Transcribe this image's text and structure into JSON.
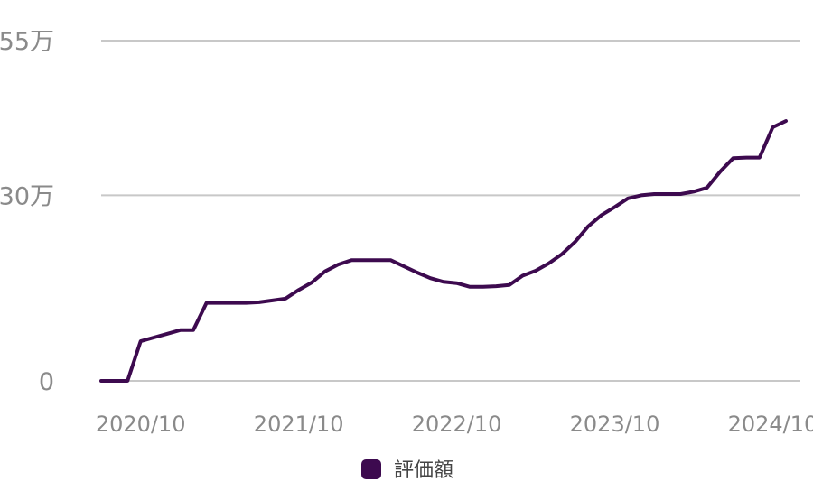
{
  "chart_data": {
    "type": "line",
    "x": [
      "2020/07",
      "2020/08",
      "2020/09",
      "2020/10",
      "2020/11",
      "2020/12",
      "2021/01",
      "2021/02",
      "2021/03",
      "2021/04",
      "2021/05",
      "2021/06",
      "2021/07",
      "2021/08",
      "2021/09",
      "2021/10",
      "2021/11",
      "2021/12",
      "2022/01",
      "2022/02",
      "2022/03",
      "2022/04",
      "2022/05",
      "2022/06",
      "2022/07",
      "2022/08",
      "2022/09",
      "2022/10",
      "2022/11",
      "2022/12",
      "2023/01",
      "2023/02",
      "2023/03",
      "2023/04",
      "2023/05",
      "2023/06",
      "2023/07",
      "2023/08",
      "2023/09",
      "2023/10",
      "2023/11",
      "2023/12",
      "2024/01",
      "2024/02",
      "2024/03",
      "2024/04",
      "2024/05",
      "2024/06",
      "2024/07",
      "2024/08",
      "2024/09",
      "2024/10",
      "2024/11"
    ],
    "series": [
      {
        "name": "評価額",
        "color": "#3d0a4f",
        "values": [
          0,
          0,
          0,
          64000,
          70000,
          76000,
          82000,
          82000,
          126000,
          126000,
          126000,
          126000,
          127000,
          130000,
          133000,
          147000,
          159000,
          177000,
          188000,
          195000,
          195000,
          195000,
          195000,
          185000,
          175000,
          166000,
          160000,
          158000,
          152000,
          152000,
          153000,
          155000,
          170000,
          178000,
          190000,
          205000,
          225000,
          250000,
          268000,
          281000,
          295000,
          300000,
          302000,
          302000,
          302000,
          306000,
          312000,
          338000,
          360000,
          361000,
          361000,
          410000,
          420000
        ]
      }
    ],
    "x_ticks": [
      "2020/10",
      "2021/10",
      "2022/10",
      "2023/10",
      "2024/10"
    ],
    "y_ticks": [
      {
        "value": 0,
        "label": "0"
      },
      {
        "value": 300000,
        "label": "30万"
      },
      {
        "value": 550000,
        "label": "55万"
      }
    ],
    "ylim": [
      0,
      550000
    ],
    "grid": true,
    "legend_position": "bottom"
  }
}
